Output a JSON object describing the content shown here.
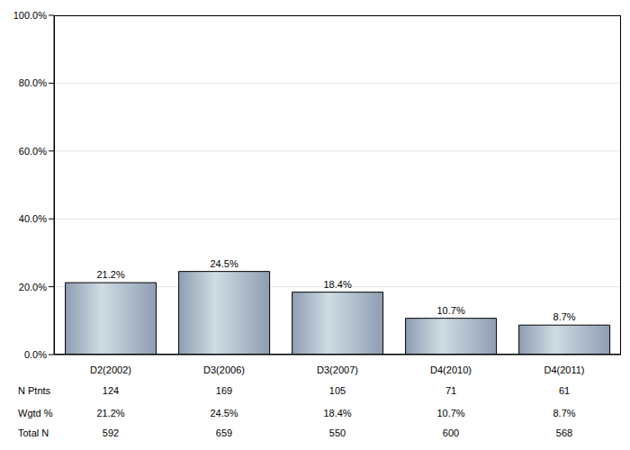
{
  "chart_data": {
    "type": "bar",
    "categories": [
      "D2(2002)",
      "D3(2006)",
      "D3(2007)",
      "D4(2010)",
      "D4(2011)"
    ],
    "values": [
      21.2,
      24.5,
      18.4,
      10.7,
      8.7
    ],
    "value_labels": [
      "21.2%",
      "24.5%",
      "18.4%",
      "10.7%",
      "8.7%"
    ],
    "data_labels": true,
    "color": "#8e9db3",
    "ylim": [
      0,
      100
    ],
    "yticks": [
      {
        "value": 0,
        "label": "0.0%"
      },
      {
        "value": 20,
        "label": "20.0%"
      },
      {
        "value": 40,
        "label": "40.0%"
      },
      {
        "value": 60,
        "label": "60.0%"
      },
      {
        "value": 80,
        "label": "80.0%"
      },
      {
        "value": 100,
        "label": "100.0%"
      }
    ],
    "grid": true,
    "table": {
      "rows": [
        {
          "label": "N Ptnts",
          "values": [
            124,
            169,
            105,
            71,
            61
          ]
        },
        {
          "label": "Wgtd %",
          "values": [
            "21.2%",
            "24.5%",
            "18.4%",
            "10.7%",
            "8.7%"
          ]
        },
        {
          "label": "Total N",
          "values": [
            592,
            659,
            550,
            600,
            568
          ]
        }
      ]
    }
  }
}
